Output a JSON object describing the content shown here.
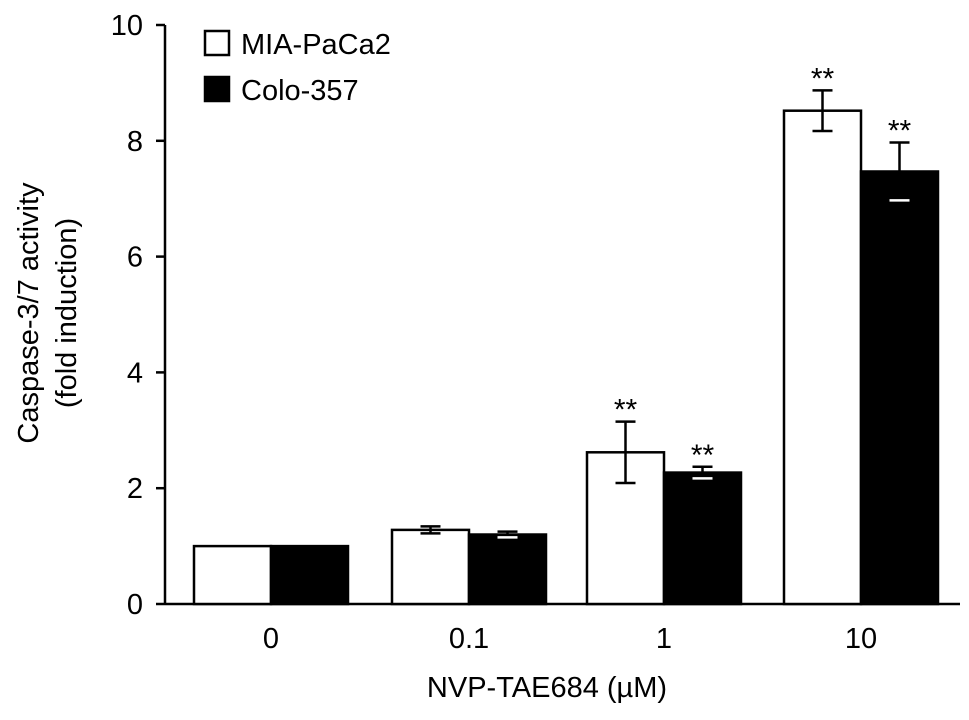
{
  "chart_data": {
    "type": "bar",
    "title": "",
    "xlabel": "NVP-TAE684 (µM)",
    "ylabel_line1": "Caspase-3/7 activity",
    "ylabel_line2": "(fold induction)",
    "ylim": [
      0,
      10
    ],
    "yticks": [
      0,
      2,
      4,
      6,
      8,
      10
    ],
    "categories": [
      "0",
      "0.1",
      "1",
      "10"
    ],
    "legend_position": "top-left",
    "series": [
      {
        "name": "MIA-PaCa2",
        "fill": "#ffffff",
        "values": [
          1.0,
          1.28,
          2.62,
          8.52
        ],
        "errors": [
          0.0,
          0.06,
          0.53,
          0.35
        ],
        "annotations": [
          "",
          "",
          "**",
          "**"
        ]
      },
      {
        "name": "Colo-357",
        "fill": "#000000",
        "values": [
          1.0,
          1.2,
          2.27,
          7.47
        ],
        "errors": [
          0.0,
          0.05,
          0.1,
          0.5
        ],
        "annotations": [
          "",
          "",
          "**",
          "**"
        ]
      }
    ]
  }
}
